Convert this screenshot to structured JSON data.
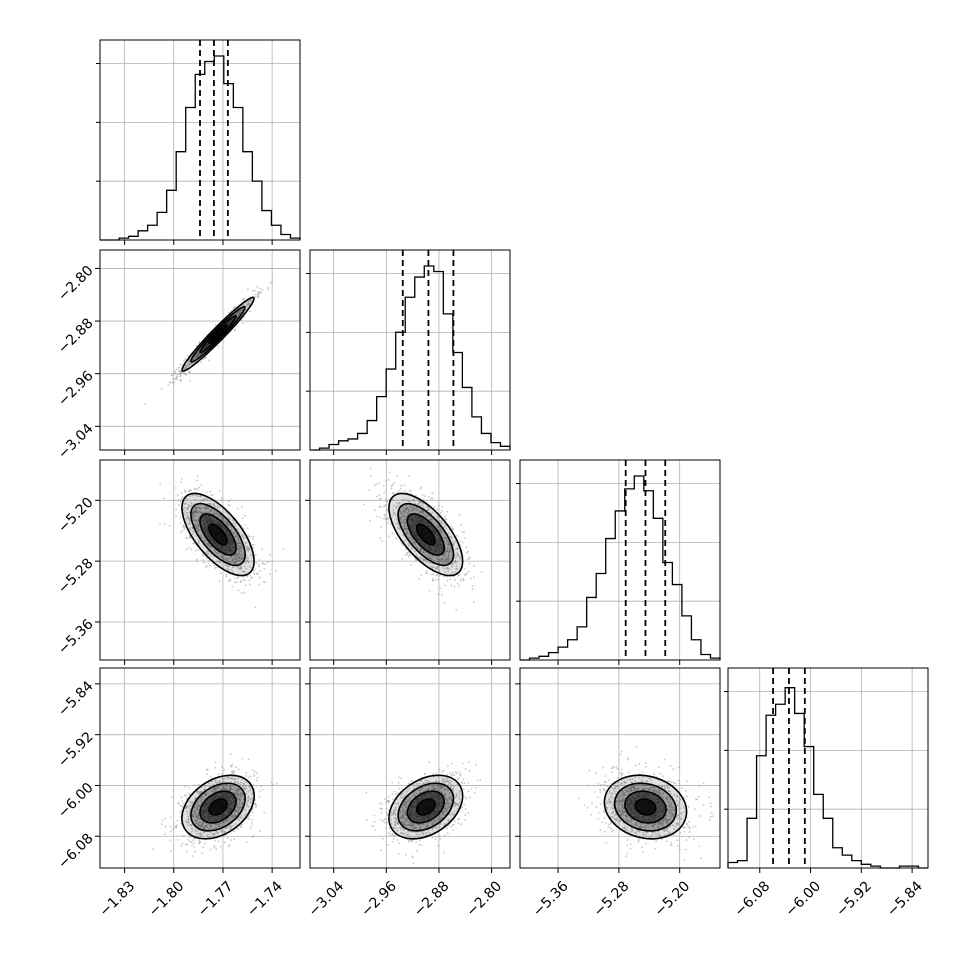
{
  "chart_data": {
    "type": "corner",
    "title": "",
    "grid": true,
    "colors": {
      "line": "#000000",
      "grid": "#b0b0b0",
      "scatter": "#9a9a9a",
      "background": "#ffffff"
    },
    "parameters": [
      {
        "xlim": [
          -1.845,
          -1.723
        ],
        "ticks": [
          -1.83,
          -1.8,
          -1.77,
          -1.74
        ],
        "tick_labels": [
          "−1.83",
          "−1.80",
          "−1.77",
          "−1.74"
        ],
        "mean": -1.773,
        "sigma": 0.011,
        "quantiles": [
          -1.784,
          -1.7755,
          -1.767
        ]
      },
      {
        "xlim": [
          -3.076,
          -2.772
        ],
        "ticks": [
          -3.04,
          -2.96,
          -2.88,
          -2.8
        ],
        "tick_labels": [
          "−3.04",
          "−2.96",
          "−2.88",
          "−2.80"
        ],
        "mean": -2.9,
        "sigma": 0.028,
        "quantiles": [
          -2.935,
          -2.896,
          -2.858
        ]
      },
      {
        "xlim": [
          -5.41,
          -5.147
        ],
        "ticks": [
          -5.36,
          -5.28,
          -5.2
        ],
        "tick_labels": [
          "−5.36",
          "−5.28",
          "−5.20"
        ],
        "mean": -5.245,
        "sigma": 0.027,
        "quantiles": [
          -5.271,
          -5.245,
          -5.219
        ]
      },
      {
        "xlim": [
          -6.13,
          -5.815
        ],
        "ticks": [
          -6.08,
          -6.0,
          -5.92,
          -5.84
        ],
        "tick_labels": [
          "−6.08",
          "−6.00",
          "−5.92",
          "−5.84"
        ],
        "mean": -6.034,
        "sigma": 0.025,
        "quantiles": [
          -6.059,
          -6.034,
          -6.009
        ]
      }
    ],
    "histograms": [
      [
        0,
        0,
        0.01,
        0.02,
        0.05,
        0.08,
        0.15,
        0.27,
        0.48,
        0.72,
        0.9,
        0.97,
        1.0,
        0.85,
        0.72,
        0.48,
        0.32,
        0.16,
        0.08,
        0.03,
        0.01
      ],
      [
        0,
        0.01,
        0.03,
        0.05,
        0.06,
        0.09,
        0.16,
        0.29,
        0.44,
        0.64,
        0.83,
        0.94,
        1.0,
        0.97,
        0.74,
        0.53,
        0.34,
        0.18,
        0.09,
        0.04,
        0.02
      ],
      [
        0,
        0.01,
        0.02,
        0.04,
        0.07,
        0.11,
        0.18,
        0.34,
        0.47,
        0.66,
        0.81,
        0.93,
        1.0,
        0.92,
        0.77,
        0.53,
        0.41,
        0.24,
        0.11,
        0.03,
        0.01
      ],
      [
        0.03,
        0.04,
        0.27,
        0.61,
        0.83,
        0.89,
        0.98,
        0.84,
        0.66,
        0.4,
        0.27,
        0.11,
        0.07,
        0.04,
        0.02,
        0.01,
        0,
        0,
        0.01,
        0.01,
        0
      ]
    ],
    "correlations": [
      [
        1,
        0.97,
        -0.65,
        0.35
      ],
      [
        0.97,
        1,
        -0.65,
        0.35
      ],
      [
        -0.65,
        -0.65,
        1,
        -0.15
      ],
      [
        0.35,
        0.35,
        -0.15,
        1
      ]
    ]
  }
}
